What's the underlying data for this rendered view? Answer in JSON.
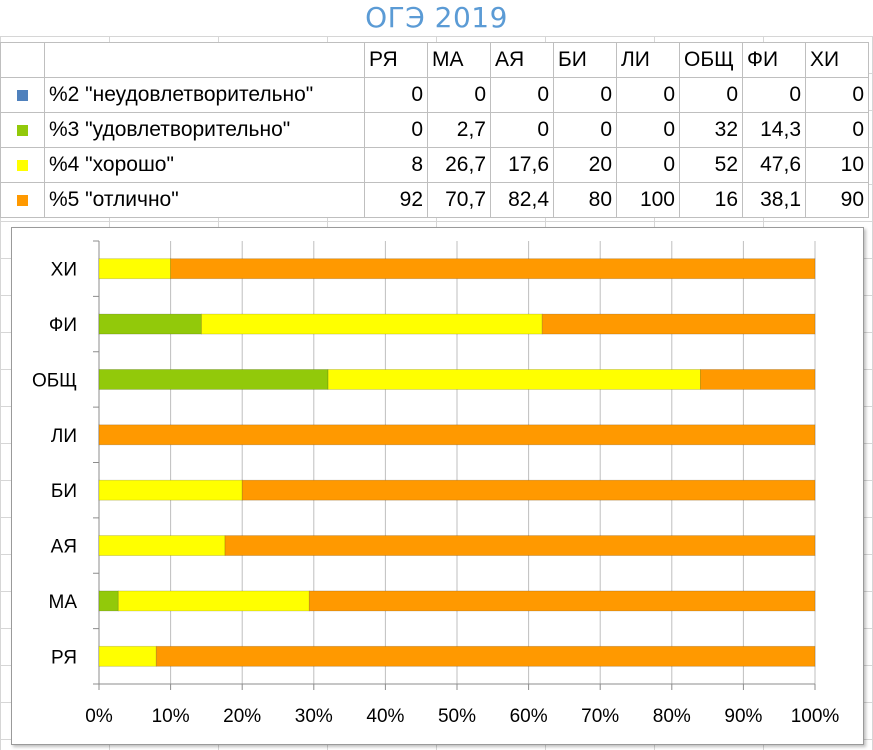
{
  "title": "ОГЭ 2019",
  "colors": {
    "s2": "#4f81bd",
    "s3": "#92c90a",
    "s4": "#ffff00",
    "s5": "#ff9900"
  },
  "table": {
    "headers": [
      "РЯ",
      "МА",
      "АЯ",
      "БИ",
      "ЛИ",
      "ОБЩ",
      "ФИ",
      "ХИ"
    ],
    "rows": [
      {
        "label": "%2 \"неудовлетворительно\"",
        "values": [
          "0",
          "0",
          "0",
          "0",
          "0",
          "0",
          "0",
          "0"
        ]
      },
      {
        "label": "%3 \"удовлетворительно\"",
        "values": [
          "0",
          "2,7",
          "0",
          "0",
          "0",
          "32",
          "14,3",
          "0"
        ]
      },
      {
        "label": "%4 \"хорошо\"",
        "values": [
          "8",
          "26,7",
          "17,6",
          "20",
          "0",
          "52",
          "47,6",
          "10"
        ]
      },
      {
        "label": "%5 \"отлично\"",
        "values": [
          "92",
          "70,7",
          "82,4",
          "80",
          "100",
          "16",
          "38,1",
          "90"
        ]
      }
    ]
  },
  "chart_data": {
    "type": "bar",
    "orientation": "horizontal",
    "stacked": "percent",
    "categories": [
      "РЯ",
      "МА",
      "АЯ",
      "БИ",
      "ЛИ",
      "ОБЩ",
      "ФИ",
      "ХИ"
    ],
    "series": [
      {
        "name": "%2 \"неудовлетворительно\"",
        "color": "#4f81bd",
        "values": [
          0,
          0,
          0,
          0,
          0,
          0,
          0,
          0
        ]
      },
      {
        "name": "%3 \"удовлетворительно\"",
        "color": "#92c90a",
        "values": [
          0,
          2.7,
          0,
          0,
          0,
          32,
          14.3,
          0
        ]
      },
      {
        "name": "%4 \"хорошо\"",
        "color": "#ffff00",
        "values": [
          8,
          26.7,
          17.6,
          20,
          0,
          52,
          47.6,
          10
        ]
      },
      {
        "name": "%5 \"отлично\"",
        "color": "#ff9900",
        "values": [
          92,
          70.7,
          82.4,
          80,
          100,
          16,
          38.1,
          90
        ]
      }
    ],
    "xlim": [
      0,
      100
    ],
    "xticks": [
      "0%",
      "10%",
      "20%",
      "30%",
      "40%",
      "50%",
      "60%",
      "70%",
      "80%",
      "90%",
      "100%"
    ],
    "grid": "vertical",
    "legend": "none (series shown in table)"
  }
}
